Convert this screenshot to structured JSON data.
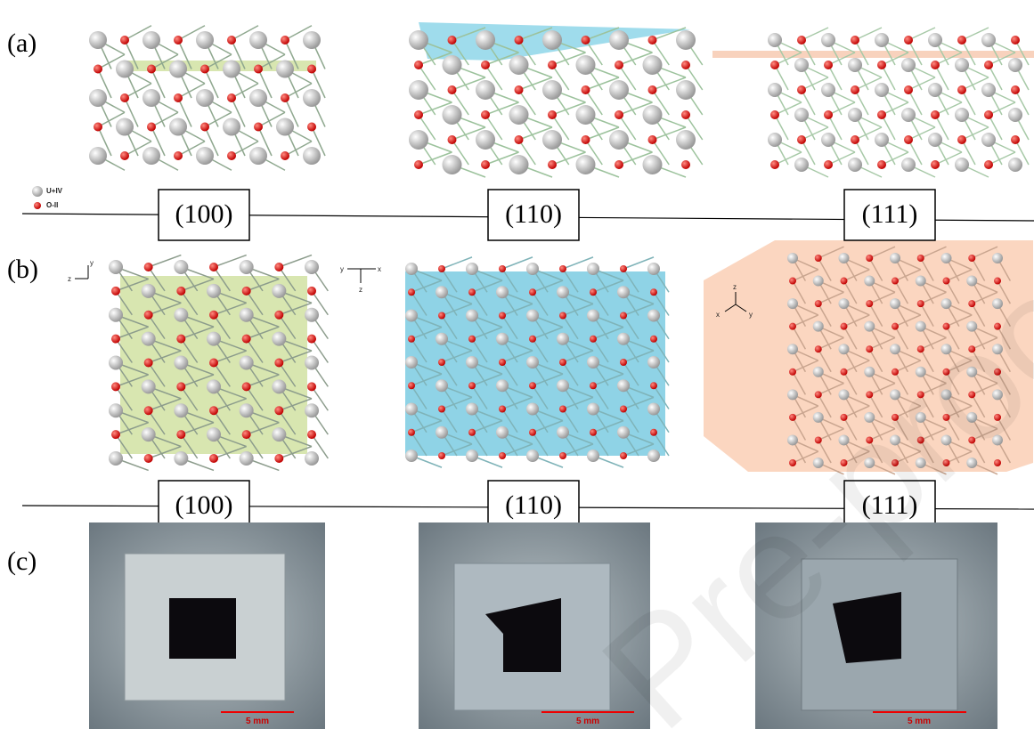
{
  "panels": [
    {
      "label": "(a)"
    },
    {
      "label": "(b)"
    },
    {
      "label": "(c)"
    }
  ],
  "legend": [
    {
      "label": "U+IV"
    },
    {
      "label": "O-II"
    }
  ],
  "row_a_planes": [
    "(100)",
    "(110)",
    "(111)"
  ],
  "row_b_planes": [
    "(100)",
    "(110)",
    "(111)"
  ],
  "axes_b": [
    [
      "y",
      "z"
    ],
    [
      "x",
      "y",
      "z"
    ],
    [
      "z",
      "x",
      "y"
    ]
  ],
  "scale_bars": [
    "5 mm",
    "5 mm",
    "5 mm"
  ],
  "watermark": "Pre-proof"
}
